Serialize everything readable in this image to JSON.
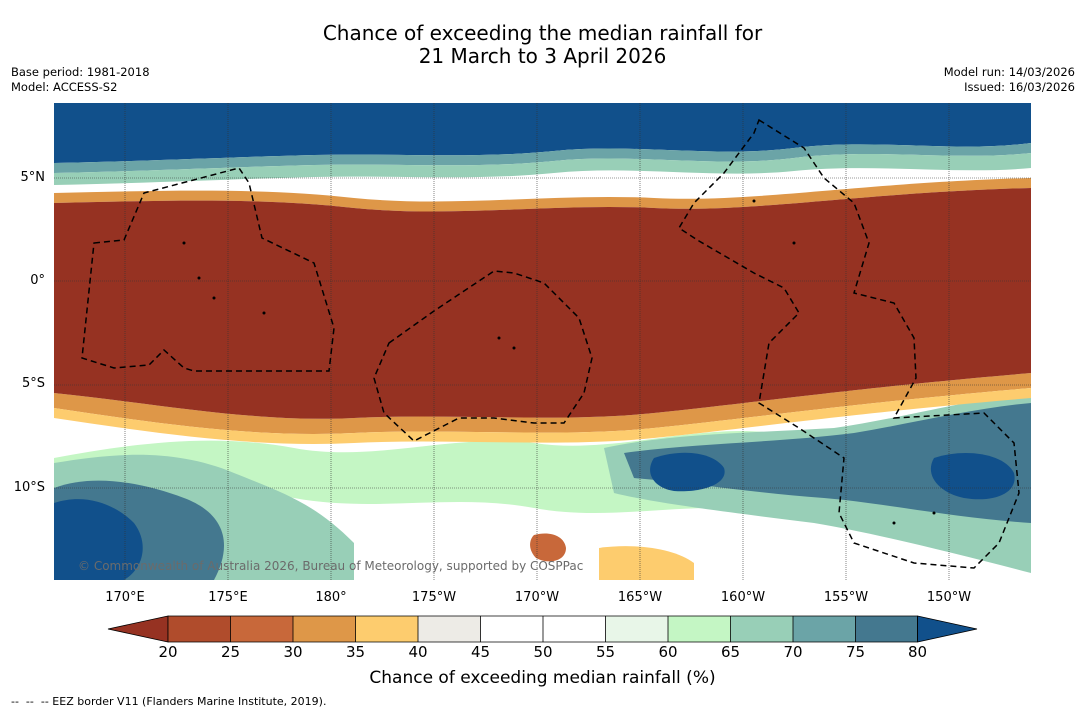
{
  "title": {
    "line1": "Chance of exceeding the median rainfall for",
    "line2": "21 March to 3 April 2026"
  },
  "meta_left": {
    "base_period": "Base period: 1981-2018",
    "model": "Model: ACCESS-S2"
  },
  "meta_right": {
    "model_run": "Model run: 14/03/2026",
    "issued": "Issued: 16/03/2026"
  },
  "latitude_labels": [
    "5°N",
    "0°",
    "5°S",
    "10°S"
  ],
  "longitude_labels": [
    "170°E",
    "175°E",
    "180°",
    "175°W",
    "170°W",
    "165°W",
    "160°W",
    "155°W",
    "150°W"
  ],
  "copyright": "© Commonwealth of Australia 2026, Bureau of Meteorology, supported by COSPPac",
  "colorbar": {
    "title": "Chance of exceeding median rainfall (%)",
    "ticks": [
      "20",
      "25",
      "30",
      "35",
      "40",
      "45",
      "50",
      "55",
      "60",
      "65",
      "70",
      "75",
      "80"
    ],
    "colors": [
      "#963222",
      "#b04c2c",
      "#c8683a",
      "#de9748",
      "#fdcc6e",
      "#edebe6",
      "#ffffff",
      "#ffffff",
      "#e8f6e8",
      "#c4f6c4",
      "#98cfb7",
      "#6ba4a7",
      "#44788f",
      "#11508b"
    ]
  },
  "footnote": "--  --  -- EEZ border V11 (Flanders Marine Institute, 2019)."
}
